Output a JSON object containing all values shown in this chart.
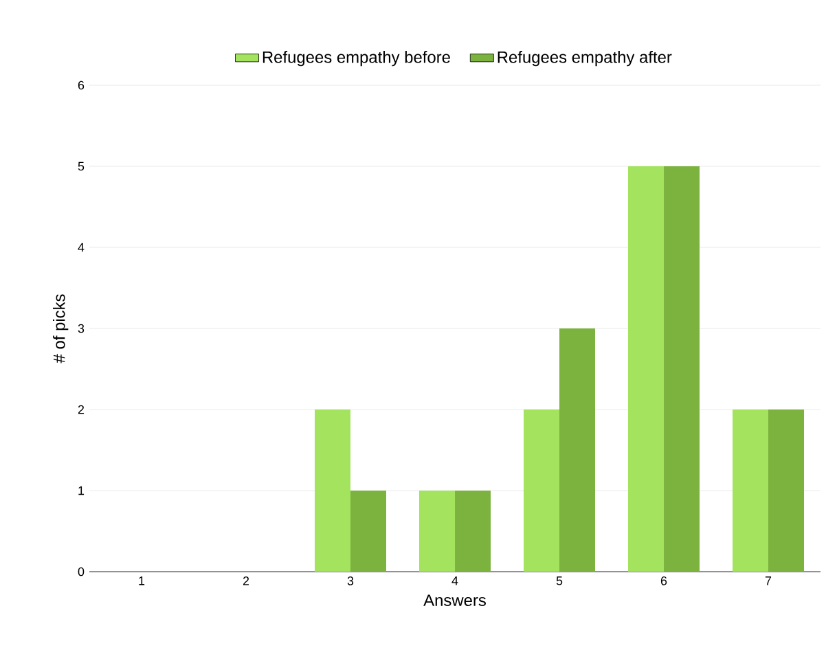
{
  "chart_data": {
    "type": "bar",
    "xlabel": "Answers",
    "ylabel": "# of picks",
    "categories": [
      "1",
      "2",
      "3",
      "4",
      "5",
      "6",
      "7"
    ],
    "series": [
      {
        "name": "Refugees empathy before",
        "color": "#a3e35d",
        "values": [
          0,
          0,
          2,
          1,
          2,
          5,
          2
        ]
      },
      {
        "name": "Refugees empathy after",
        "color": "#7cb33f",
        "values": [
          0,
          0,
          1,
          1,
          3,
          5,
          2
        ]
      }
    ],
    "ylim": [
      0,
      6
    ],
    "yticks": [
      0,
      1,
      2,
      3,
      4,
      5,
      6
    ],
    "grid": "y",
    "legend": "top"
  }
}
